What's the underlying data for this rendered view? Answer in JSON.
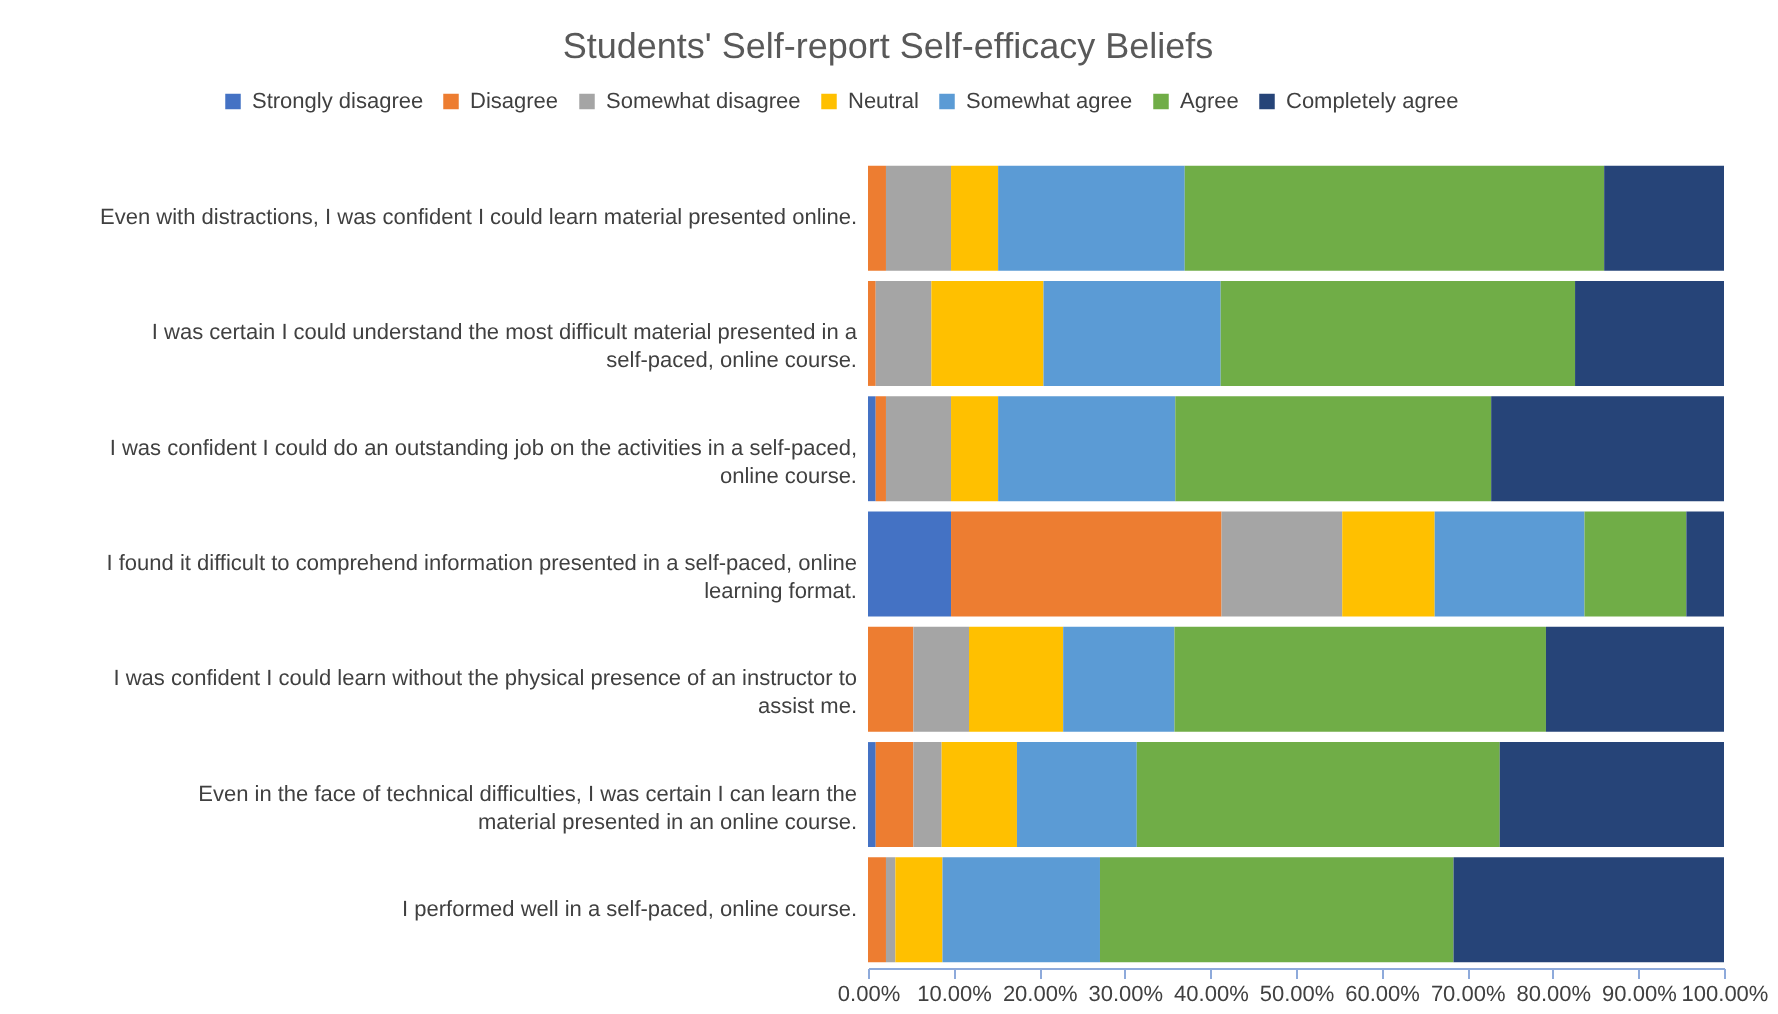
{
  "chart_data": {
    "type": "bar",
    "orientation": "horizontal",
    "stacked": true,
    "title": "Students' Self-report Self-efficacy Beliefs",
    "legend": "top",
    "grid": false,
    "categories": [
      "Even with distractions, I was confident I could learn material presented online.",
      "I was certain I could understand the most difficult material presented in a self-paced, online course.",
      "I was confident I could do an outstanding job on the activities in a self-paced, online course.",
      "I found it difficult to comprehend information presented in a self-paced, online learning format.",
      "I was confident I could learn without the physical presence of an instructor to assist me.",
      "Even in the face of technical difficulties, I was certain I can learn the material presented in an online course.",
      "I performed well in a self-paced, online course."
    ],
    "series": [
      {
        "name": "Strongly disagree",
        "color": "#4472c4",
        "values": [
          0,
          0,
          0.9,
          9.7,
          0,
          0.9,
          0
        ]
      },
      {
        "name": "Disagree",
        "color": "#ed7d31",
        "values": [
          2.1,
          0.9,
          1.2,
          31.6,
          5.3,
          4.4,
          2.1
        ]
      },
      {
        "name": "Somewhat disagree",
        "color": "#a5a5a5",
        "values": [
          7.6,
          6.5,
          7.6,
          14.1,
          6.5,
          3.3,
          1.1
        ]
      },
      {
        "name": "Neutral",
        "color": "#ffc000",
        "values": [
          5.5,
          13.1,
          5.5,
          10.8,
          11.0,
          8.8,
          5.5
        ]
      },
      {
        "name": "Somewhat agree",
        "color": "#5b9bd5",
        "values": [
          21.8,
          20.7,
          20.7,
          17.5,
          13.0,
          14.0,
          18.4
        ]
      },
      {
        "name": "Agree",
        "color": "#70ad47",
        "values": [
          49.0,
          41.4,
          36.9,
          11.9,
          43.4,
          42.4,
          41.3
        ]
      },
      {
        "name": "Completely agree",
        "color": "#264478",
        "values": [
          14.0,
          17.4,
          27.2,
          4.4,
          20.8,
          26.2,
          31.6
        ]
      }
    ],
    "xlim": [
      0,
      100
    ],
    "xticks": [
      {
        "value": 0,
        "label": "0.00%"
      },
      {
        "value": 10,
        "label": "10.00%"
      },
      {
        "value": 20,
        "label": "20.00%"
      },
      {
        "value": 30,
        "label": "30.00%"
      },
      {
        "value": 40,
        "label": "40.00%"
      },
      {
        "value": 50,
        "label": "50.00%"
      },
      {
        "value": 60,
        "label": "60.00%"
      },
      {
        "value": 70,
        "label": "70.00%"
      },
      {
        "value": 80,
        "label": "80.00%"
      },
      {
        "value": 90,
        "label": "90.00%"
      },
      {
        "value": 100,
        "label": "100.00%"
      }
    ]
  }
}
